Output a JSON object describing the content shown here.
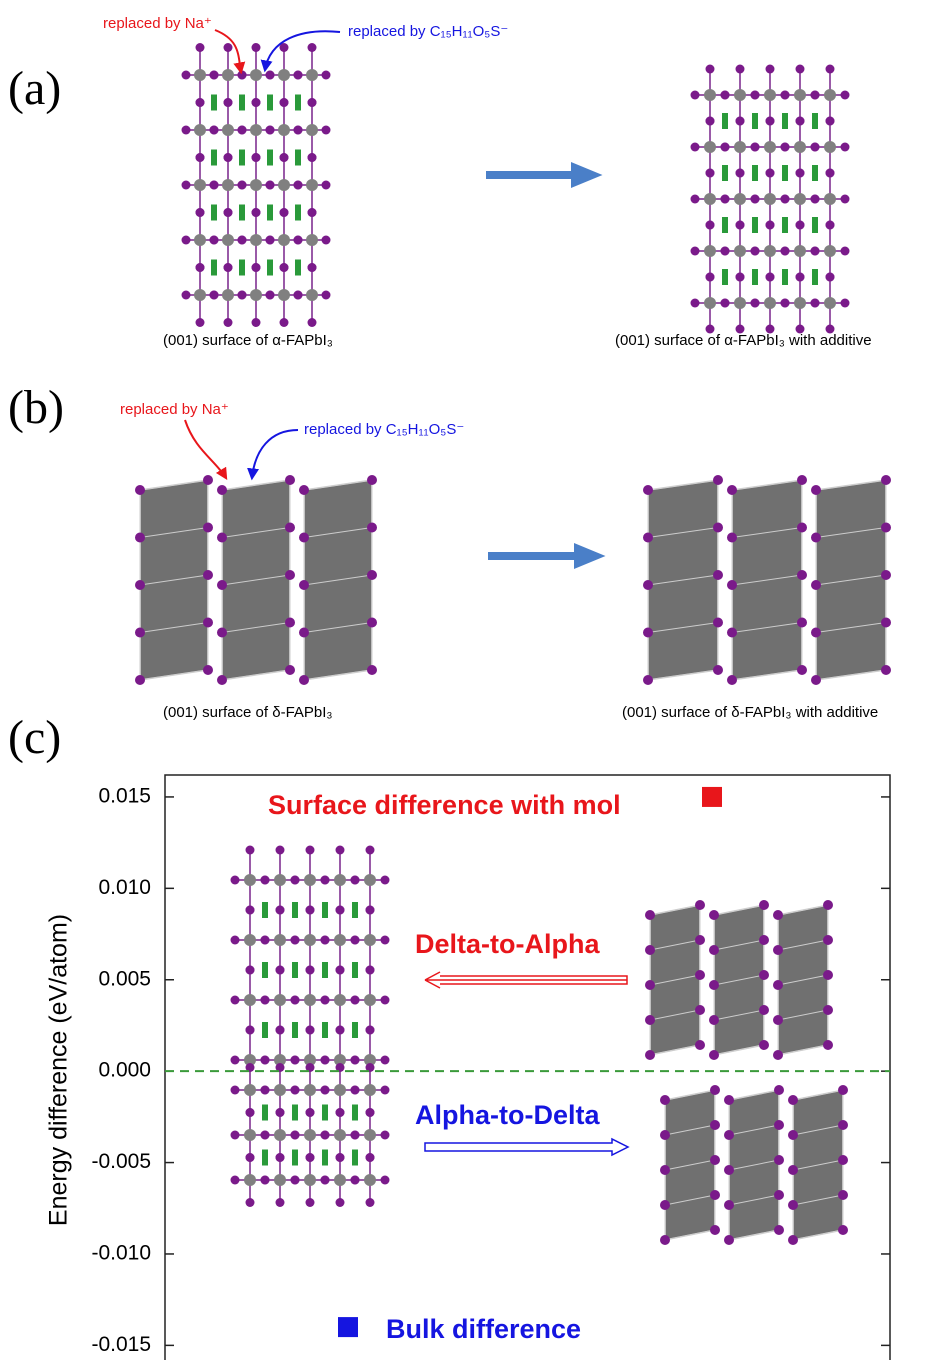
{
  "panel_a": {
    "label": "(a)",
    "note_na": "replaced by Na⁺",
    "note_mol": "replaced by C₁₅H₁₁O₅S⁻",
    "caption_left": "(001) surface of α-FAPbI₃",
    "caption_right": "(001) surface of α-FAPbI₃ with additive"
  },
  "panel_b": {
    "label": "(b)",
    "note_na": "replaced by Na⁺",
    "note_mol": "replaced by C₁₅H₁₁O₅S⁻",
    "caption_left": "(001) surface of δ-FAPbI₃",
    "caption_right": "(001) surface of δ-FAPbI₃ with additive"
  },
  "panel_c": {
    "label": "(c)"
  },
  "chart_data": {
    "type": "scatter",
    "ylabel": "Energy difference (eV/atom)",
    "ylim": [
      -0.0158,
      0.0162
    ],
    "yticks": [
      {
        "value": 0.015,
        "label": "0.015"
      },
      {
        "value": 0.01,
        "label": "0.010"
      },
      {
        "value": 0.005,
        "label": "0.005"
      },
      {
        "value": 0,
        "label": "0.000"
      },
      {
        "value": -0.005,
        "label": "-0.005"
      },
      {
        "value": -0.01,
        "label": "-0.010"
      },
      {
        "value": -0.015,
        "label": "-0.015"
      }
    ],
    "reference_line": {
      "value": 0,
      "color": "#3a9a3a"
    },
    "series": [
      {
        "name": "Surface difference with mol",
        "color": "#e8161b",
        "values": [
          0.015
        ]
      },
      {
        "name": "Bulk difference",
        "color": "#1515e0",
        "values": [
          -0.014
        ]
      }
    ],
    "annotations": [
      {
        "text": "Delta-to-Alpha",
        "color": "#e8161b"
      },
      {
        "text": "Alpha-to-Delta",
        "color": "#1515e0"
      }
    ]
  }
}
